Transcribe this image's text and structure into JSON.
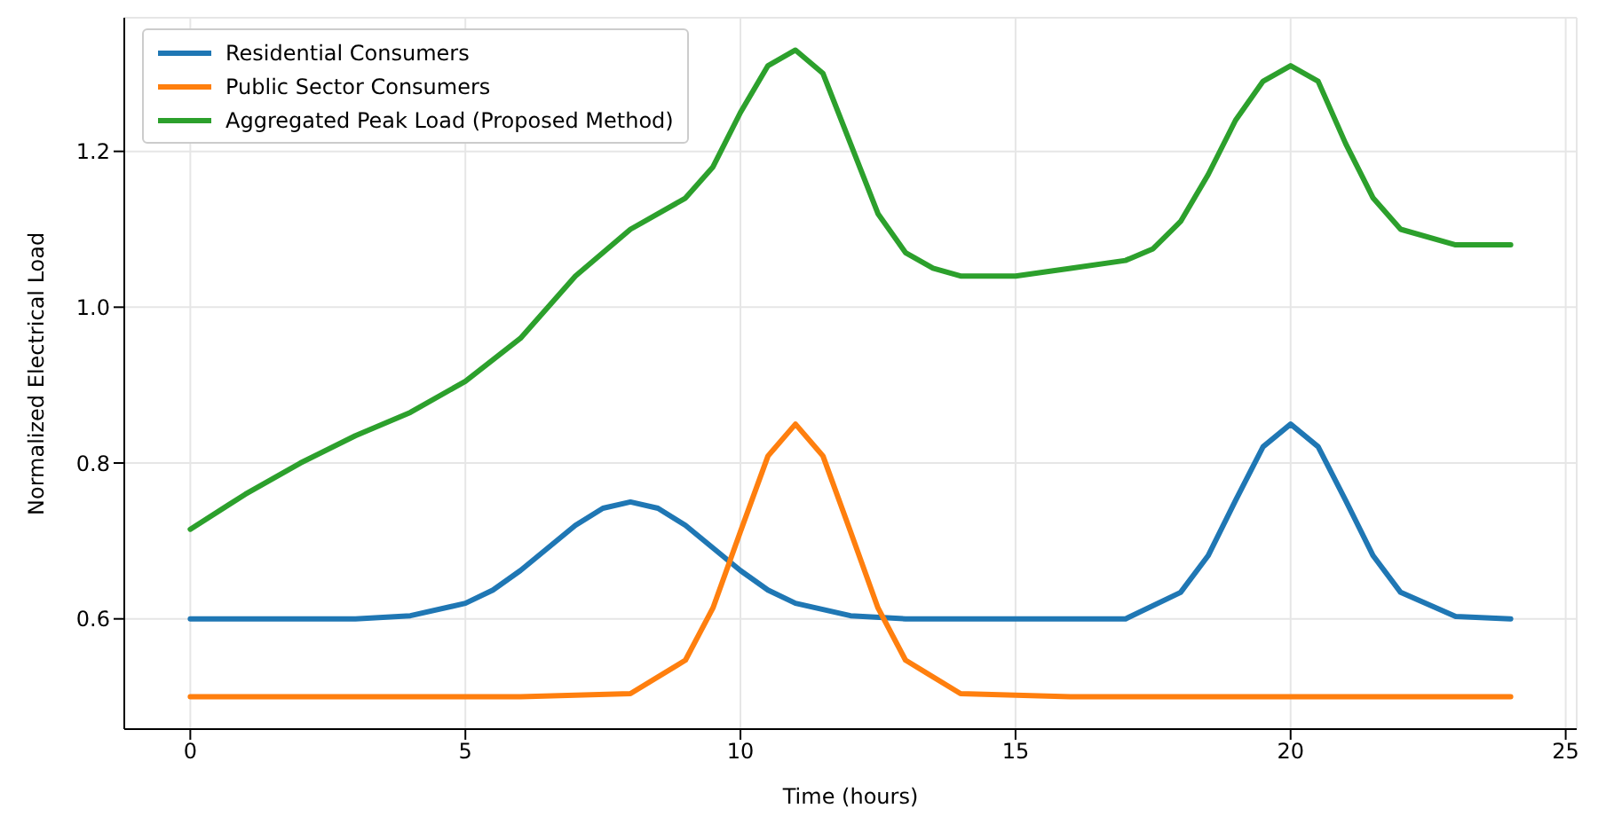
{
  "chart_data": {
    "type": "line",
    "xlabel": "Time (hours)",
    "ylabel": "Normalized Electrical Load",
    "xlim": [
      -1.2,
      25.2
    ],
    "xticks": [
      0,
      5,
      10,
      15,
      20,
      25
    ],
    "ylim": [
      0.4585,
      1.3715
    ],
    "yticks": [
      0.6,
      0.8,
      {
        "value": 1,
        "label": "1.0"
      },
      1.2
    ],
    "grid": true,
    "legend": "top left",
    "marker": "none",
    "line_style": "solid",
    "series": [
      {
        "name": "Residential Consumers",
        "color": "#1f77b4",
        "x": [
          0,
          1,
          2,
          3,
          4,
          5,
          5.5,
          6,
          6.5,
          7,
          7.5,
          8,
          8.5,
          9,
          9.5,
          10,
          10.5,
          11,
          12,
          13,
          14,
          15,
          16,
          17,
          18,
          18.5,
          19,
          19.5,
          20,
          20.5,
          21,
          21.5,
          22,
          23,
          24
        ],
        "values": [
          0.6,
          0.6,
          0.6,
          0.6,
          0.604,
          0.62,
          0.637,
          0.662,
          0.691,
          0.72,
          0.742,
          0.75,
          0.742,
          0.72,
          0.691,
          0.662,
          0.637,
          0.62,
          0.604,
          0.6,
          0.6,
          0.6,
          0.6,
          0.6,
          0.634,
          0.681,
          0.752,
          0.821,
          0.85,
          0.821,
          0.752,
          0.681,
          0.634,
          0.603,
          0.6
        ]
      },
      {
        "name": "Public Sector Consumers",
        "color": "#ff7f0e",
        "x": [
          0,
          2,
          4,
          6,
          8,
          9,
          9.5,
          10,
          10.5,
          11,
          11.5,
          12,
          12.5,
          13,
          14,
          16,
          18,
          20,
          22,
          24
        ],
        "values": [
          0.5,
          0.5,
          0.5,
          0.5,
          0.504,
          0.547,
          0.614,
          0.712,
          0.809,
          0.85,
          0.809,
          0.712,
          0.614,
          0.547,
          0.504,
          0.5,
          0.5,
          0.5,
          0.5,
          0.5
        ]
      },
      {
        "name": "Aggregated Peak Load (Proposed Method)",
        "color": "#2ca02c",
        "x": [
          0,
          1,
          2,
          3,
          4,
          5,
          6,
          7,
          8,
          9,
          9.5,
          10,
          10.5,
          11,
          11.5,
          12,
          12.5,
          13,
          13.5,
          14,
          15,
          16,
          17,
          17.5,
          18,
          18.5,
          19,
          19.5,
          20,
          20.5,
          21,
          21.5,
          22,
          23,
          24
        ],
        "values": [
          0.715,
          0.76,
          0.8,
          0.835,
          0.865,
          0.905,
          0.96,
          1.04,
          1.1,
          1.14,
          1.18,
          1.25,
          1.31,
          1.33,
          1.3,
          1.21,
          1.12,
          1.07,
          1.05,
          1.04,
          1.04,
          1.05,
          1.06,
          1.075,
          1.11,
          1.17,
          1.24,
          1.29,
          1.31,
          1.29,
          1.21,
          1.14,
          1.1,
          1.08,
          1.08
        ]
      }
    ]
  }
}
